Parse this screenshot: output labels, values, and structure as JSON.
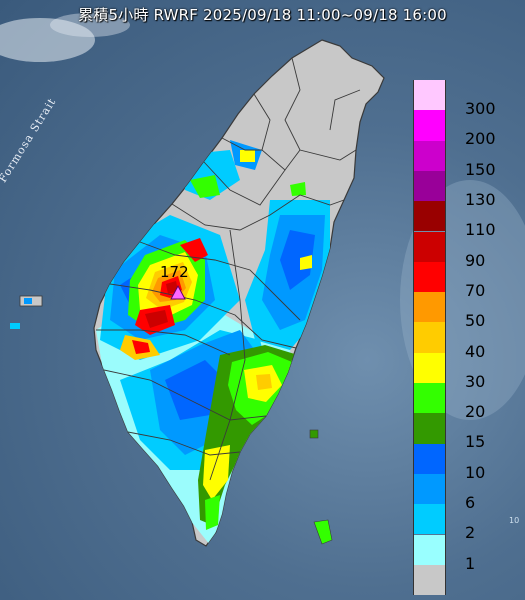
{
  "header": {
    "title": "累積5小時 RWRF 2025/09/18 11:00~09/18 16:00"
  },
  "map": {
    "strait_label": "Formosa Strait",
    "max_value_label": "172",
    "corner_text": "10",
    "land_color": "#c8c8c8",
    "border_color": "#3a3a3a"
  },
  "legend": {
    "items": [
      {
        "label": "300",
        "color": "#ffc8ff"
      },
      {
        "label": "200",
        "color": "#ff00ff"
      },
      {
        "label": "150",
        "color": "#cc00cc"
      },
      {
        "label": "130",
        "color": "#990099"
      },
      {
        "label": "110",
        "color": "#990000"
      },
      {
        "label": "90",
        "color": "#cc0000"
      },
      {
        "label": "70",
        "color": "#ff0000"
      },
      {
        "label": "50",
        "color": "#ff9900"
      },
      {
        "label": "40",
        "color": "#ffcc00"
      },
      {
        "label": "30",
        "color": "#ffff00"
      },
      {
        "label": "20",
        "color": "#33ff00"
      },
      {
        "label": "15",
        "color": "#339900"
      },
      {
        "label": "10",
        "color": "#0066ff"
      },
      {
        "label": "6",
        "color": "#0099ff"
      },
      {
        "label": "2",
        "color": "#00ccff"
      },
      {
        "label": "1",
        "color": "#99ffff"
      },
      {
        "label": "",
        "color": "#c8c8c8"
      }
    ]
  }
}
